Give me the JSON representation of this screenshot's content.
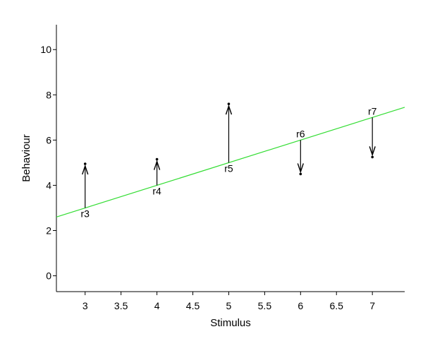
{
  "chart_data": {
    "type": "scatter",
    "title": "",
    "xlabel": "Stimulus",
    "ylabel": "Behaviour",
    "xlim": [
      2.6,
      7.45
    ],
    "ylim": [
      -0.7,
      11.1
    ],
    "xticks": [
      3,
      3.5,
      4,
      4.5,
      5,
      5.5,
      6,
      6.5,
      7
    ],
    "xtick_labels": [
      "3",
      "3.5",
      "4",
      "4.5",
      "5",
      "5.5",
      "6",
      "6.5",
      "7"
    ],
    "yticks": [
      0,
      2,
      4,
      6,
      8,
      10
    ],
    "ytick_labels": [
      "0",
      "2",
      "4",
      "6",
      "8",
      "10"
    ],
    "grid": false,
    "regression_line": {
      "slope": 1,
      "intercept": 0,
      "color": "#33dd33"
    },
    "residuals": [
      {
        "label": "r3",
        "x": 3,
        "fitted": 3.0,
        "observed": 4.95
      },
      {
        "label": "r4",
        "x": 4,
        "fitted": 4.0,
        "observed": 5.15
      },
      {
        "label": "r5",
        "x": 5,
        "fitted": 5.0,
        "observed": 7.6
      },
      {
        "label": "r6",
        "x": 6,
        "fitted": 6.0,
        "observed": 4.5
      },
      {
        "label": "r7",
        "x": 7,
        "fitted": 7.0,
        "observed": 5.25
      }
    ]
  }
}
